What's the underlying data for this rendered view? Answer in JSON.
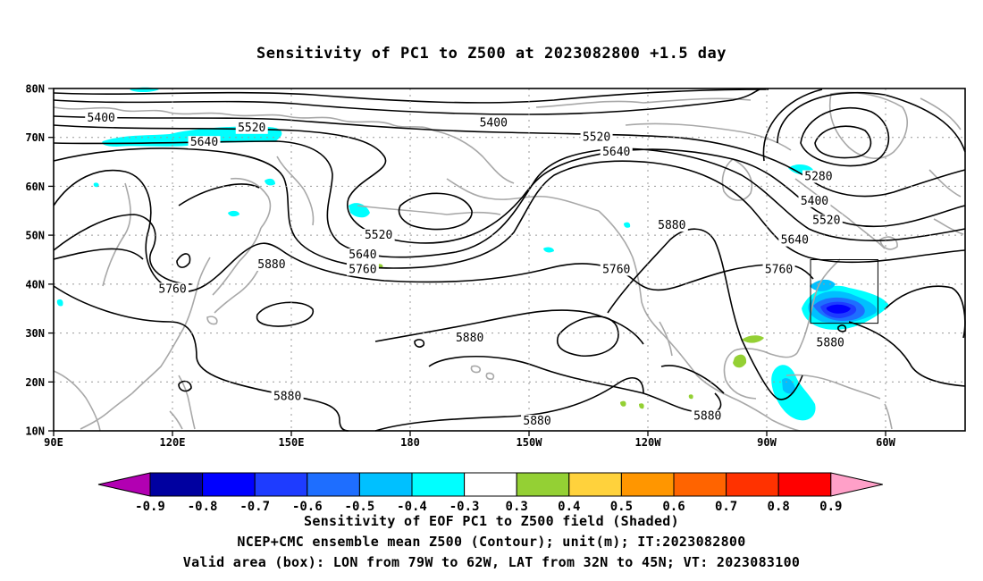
{
  "title": "Sensitivity of PC1 to Z500 at 2023082800 +1.5 day",
  "lat_labels": [
    "80N",
    "70N",
    "60N",
    "50N",
    "40N",
    "30N",
    "20N",
    "10N"
  ],
  "lon_labels": [
    "90E",
    "120E",
    "150E",
    "180",
    "150W",
    "120W",
    "90W",
    "60W"
  ],
  "contour_labels": [
    {
      "text": "5400",
      "lon": 102,
      "lat": 74
    },
    {
      "text": "5520",
      "lon": 140,
      "lat": 72
    },
    {
      "text": "5640",
      "lon": 128,
      "lat": 69
    },
    {
      "text": "5400",
      "lon": -159,
      "lat": 73
    },
    {
      "text": "5520",
      "lon": -133,
      "lat": 70
    },
    {
      "text": "5640",
      "lon": -128,
      "lat": 67
    },
    {
      "text": "5280",
      "lon": -77,
      "lat": 62
    },
    {
      "text": "5400",
      "lon": -78,
      "lat": 57
    },
    {
      "text": "5520",
      "lon": -75,
      "lat": 53
    },
    {
      "text": "5640",
      "lon": -83,
      "lat": 49
    },
    {
      "text": "5760",
      "lon": -87,
      "lat": 43
    },
    {
      "text": "5880",
      "lon": -114,
      "lat": 52
    },
    {
      "text": "5520",
      "lon": 172,
      "lat": 50
    },
    {
      "text": "5640",
      "lon": 168,
      "lat": 46
    },
    {
      "text": "5760",
      "lon": 168,
      "lat": 43
    },
    {
      "text": "5760",
      "lon": -128,
      "lat": 43
    },
    {
      "text": "5880",
      "lon": 145,
      "lat": 44
    },
    {
      "text": "5760",
      "lon": 120,
      "lat": 39
    },
    {
      "text": "5880",
      "lon": -165,
      "lat": 29
    },
    {
      "text": "5880",
      "lon": -74,
      "lat": 28
    },
    {
      "text": "5880",
      "lon": -148,
      "lat": 12
    },
    {
      "text": "5880",
      "lon": -105,
      "lat": 13
    },
    {
      "text": "5880",
      "lon": 149,
      "lat": 17
    }
  ],
  "colorbar": {
    "labels": [
      "-0.9",
      "-0.8",
      "-0.7",
      "-0.6",
      "-0.5",
      "-0.4",
      "-0.3",
      "0.3",
      "0.4",
      "0.5",
      "0.6",
      "0.7",
      "0.8",
      "0.9"
    ],
    "colors": [
      "#b200b2",
      "#0000a0",
      "#0000ff",
      "#1e3cff",
      "#1e6eff",
      "#00c0ff",
      "#00ffff",
      "#ffffff",
      "#94d034",
      "#ffd23c",
      "#ff9600",
      "#ff6400",
      "#ff3200",
      "#ff0000",
      "#ffa0c8"
    ]
  },
  "caption": [
    "Sensitivity of EOF PC1 to Z500 field (Shaded)",
    "NCEP+CMC ensemble mean Z500 (Contour); unit(m); IT:2023082800",
    "Valid area (box): LON from 79W to 62W, LAT from 32N to 45N; VT: 2023083100"
  ],
  "valid_box": {
    "lon_w": -79,
    "lon_e": -62,
    "lat_s": 32,
    "lat_n": 45
  }
}
